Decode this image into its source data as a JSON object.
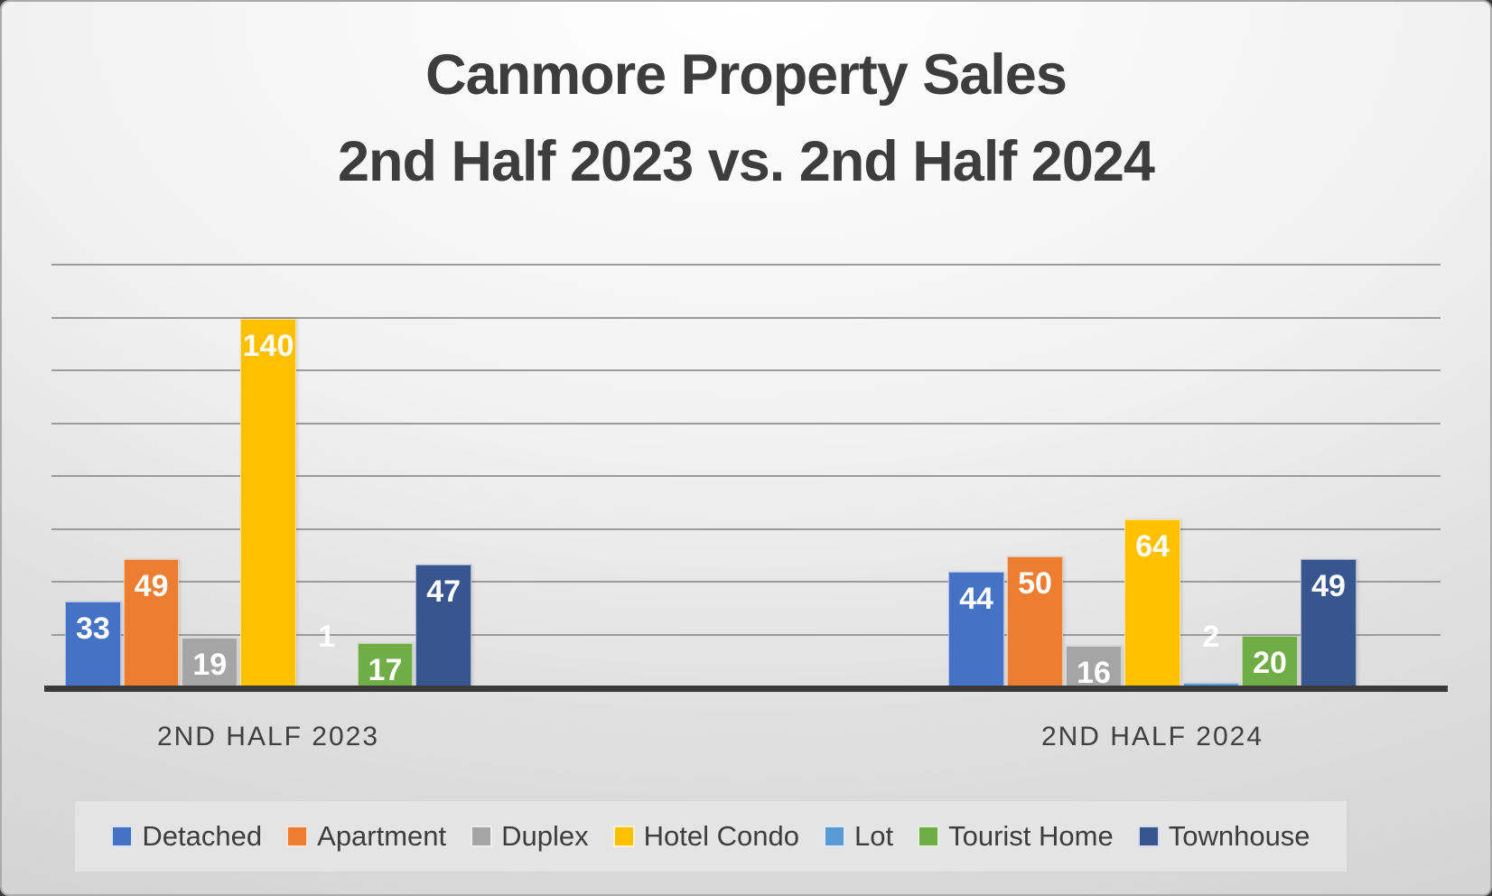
{
  "title": {
    "line1": "Canmore Property Sales",
    "line2": "2nd Half 2023 vs. 2nd Half 2024"
  },
  "chart_data": {
    "type": "bar",
    "title": "Canmore Property Sales 2nd Half 2023 vs. 2nd Half 2024",
    "categories": [
      "2ND HALF 2023",
      "2ND HALF 2024"
    ],
    "series": [
      {
        "name": "Detached",
        "color": "#4472C4",
        "values": [
          33,
          44
        ]
      },
      {
        "name": "Apartment",
        "color": "#ED7D31",
        "values": [
          49,
          50
        ]
      },
      {
        "name": "Duplex",
        "color": "#A5A5A5",
        "values": [
          19,
          16
        ]
      },
      {
        "name": "Hotel Condo",
        "color": "#FFC000",
        "values": [
          140,
          64
        ]
      },
      {
        "name": "Lot",
        "color": "#5B9BD5",
        "values": [
          1,
          2
        ]
      },
      {
        "name": "Tourist Home",
        "color": "#70AD47",
        "values": [
          17,
          20
        ]
      },
      {
        "name": "Townhouse",
        "color": "#37568F",
        "values": [
          47,
          49
        ]
      }
    ],
    "ylim": [
      0,
      160
    ],
    "gridline_step": 20,
    "grid": true,
    "legend_position": "bottom",
    "data_labels": true,
    "xlabel": "",
    "ylabel": ""
  },
  "style_colors": {
    "gridline": "#9b9b9b",
    "axis": "#3a3a3a",
    "text": "#3d3d3d",
    "legend_background": "#e4e4e4"
  }
}
